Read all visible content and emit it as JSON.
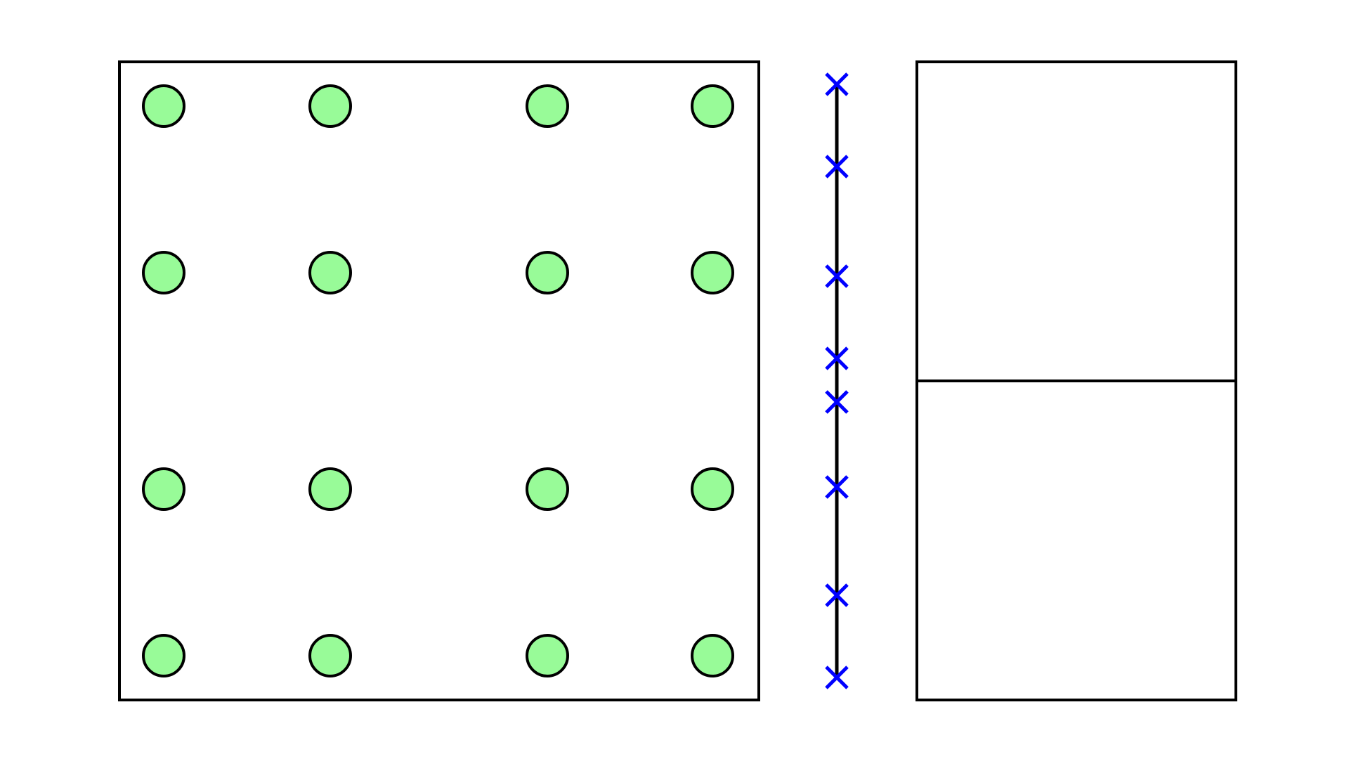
{
  "colors": {
    "background": "#ffffff",
    "stroke": "#000000",
    "point_fill": "#98fb98",
    "marker": "#0000ff"
  },
  "grid_panel": {
    "rows": 4,
    "cols": 4,
    "point_shape": "circle"
  },
  "marker_line": {
    "orientation": "vertical",
    "marker_count": 8,
    "marker_shape": "x"
  },
  "split_panel": {
    "divisions": 2,
    "orientation": "horizontal-split"
  }
}
